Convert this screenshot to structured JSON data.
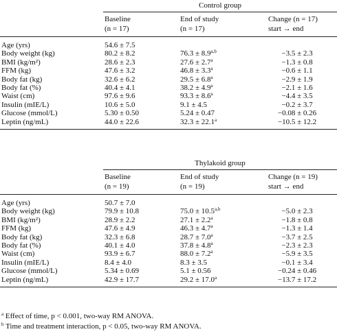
{
  "groups": [
    {
      "title": "Control group",
      "columns": [
        [
          "Baseline",
          "(n = 17)"
        ],
        [
          "End of study",
          "(n = 17)"
        ],
        [
          "Change (n = 17)",
          "start → end"
        ]
      ],
      "rows": [
        {
          "label": "Age (yrs)",
          "cells": [
            "54.6 ± 7.5"
          ]
        },
        {
          "label": "Body weight (kg)",
          "cells": [
            "80.2 ± 8.2",
            {
              "text": "76.3 ± 8.9",
              "sup": "a,b"
            },
            "−3.5 ± 2.3"
          ]
        },
        {
          "label": "BMI (kg/m²)",
          "cells": [
            "28.6 ± 2.3",
            {
              "text": "27.6 ± 2.7",
              "sup": "a"
            },
            "−1.3 ± 0.8"
          ]
        },
        {
          "label": "FFM (kg)",
          "cells": [
            "47.6 ± 3.2",
            {
              "text": "46.8 ± 3.3",
              "sup": "a"
            },
            "−0.6 ± 1.1"
          ]
        },
        {
          "label": "Body fat (kg)",
          "cells": [
            "32.6 ± 6.2",
            {
              "text": "29.5 ± 6.8",
              "sup": "a"
            },
            "−2.9 ± 1.9"
          ]
        },
        {
          "label": "Body fat (%)",
          "cells": [
            "40.4 ± 4.1",
            {
              "text": "38.2 ± 4.9",
              "sup": "a"
            },
            "−2.1 ± 1.6"
          ]
        },
        {
          "label": "Waist (cm)",
          "cells": [
            "97.6 ± 9.6",
            {
              "text": "93.3 ± 8.6",
              "sup": "a"
            },
            "−4.4 ± 3.5"
          ]
        },
        {
          "label": "Insulin (mIE/L)",
          "cells": [
            "10.6 ± 5.0",
            "9.1 ± 4.5",
            "−0.2 ± 3.7"
          ]
        },
        {
          "label": "Glucose (mmol/L)",
          "cells": [
            "5.30 ± 0.50",
            "5.24 ± 0.47",
            "−0.08 ± 0.26"
          ]
        },
        {
          "label": "Leptin (ng/mL)",
          "cells": [
            "44.0 ± 22.6",
            {
              "text": "32.3 ± 22.1",
              "sup": "a"
            },
            "−10.5 ± 12.2"
          ]
        }
      ]
    },
    {
      "title": "Thylakoid group",
      "columns": [
        [
          "Baseline",
          "(n = 19)"
        ],
        [
          "End of study",
          "(n = 19)"
        ],
        [
          "Change (n = 19)",
          "start → end"
        ]
      ],
      "rows": [
        {
          "label": "Age (yrs)",
          "cells": [
            "50.7 ± 7.0"
          ]
        },
        {
          "label": "Body weight (kg)",
          "cells": [
            "79.9 ± 10.8",
            {
              "text": "75.0 ± 10.5",
              "sup": "a,b"
            },
            "−5.0 ± 2.3"
          ]
        },
        {
          "label": "BMI (kg/m²)",
          "cells": [
            "28.9 ± 2.2",
            {
              "text": "27.1 ± 2.2",
              "sup": "a"
            },
            "−1.8 ± 0.8"
          ]
        },
        {
          "label": "FFM (kg)",
          "cells": [
            "47.6 ± 4.9",
            {
              "text": "46.3 ± 4.7",
              "sup": "a"
            },
            "−1.3 ± 1.4"
          ]
        },
        {
          "label": "Body fat (kg)",
          "cells": [
            "32.3 ± 6.8",
            {
              "text": "28.7 ± 7.0",
              "sup": "a"
            },
            "−3.7 ± 2.5"
          ]
        },
        {
          "label": "Body fat (%)",
          "cells": [
            "40.1 ± 4.0",
            {
              "text": "37.8 ± 4.8",
              "sup": "a"
            },
            "−2.3 ± 2.3"
          ]
        },
        {
          "label": "Waist (cm)",
          "cells": [
            "93.9 ± 6.7",
            {
              "text": "88.0 ± 7.2",
              "sup": "a"
            },
            "−5.9 ± 3.5"
          ]
        },
        {
          "label": "Insulin (mIE/L)",
          "cells": [
            "8.4 ± 4.0",
            "8.3 ± 3.5",
            "−0.1 ± 3.4"
          ]
        },
        {
          "label": "Glucose (mmol/L)",
          "cells": [
            "5.34 ± 0.69",
            "5.1 ± 0.56",
            "−0.24 ± 0.46"
          ]
        },
        {
          "label": "Leptin (ng/mL)",
          "cells": [
            "42.9 ± 17.7",
            {
              "text": "29.2 ± 17.0",
              "sup": "a"
            },
            "−13.7 ± 17.2"
          ]
        }
      ]
    }
  ],
  "footnotes": [
    {
      "mark": "a",
      "text": "Effect of time, p < 0.001, two-way RM ANOVA."
    },
    {
      "mark": "b",
      "text": "Time and treatment interaction, p < 0.05, two-way RM ANOVA."
    }
  ]
}
